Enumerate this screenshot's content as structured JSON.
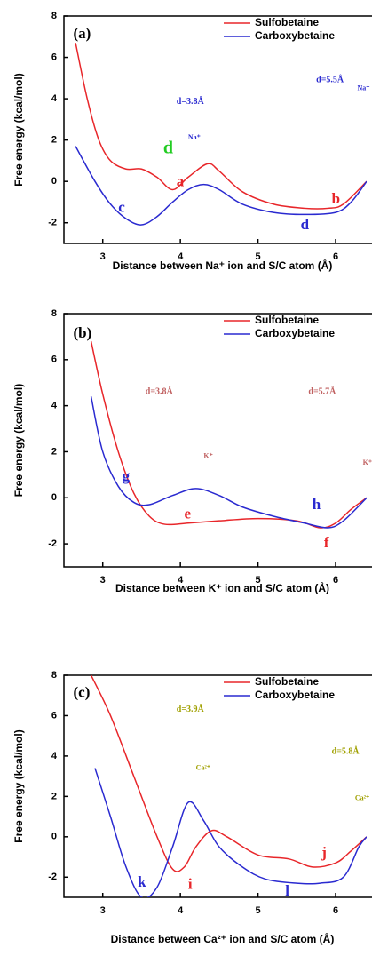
{
  "chart_data": [
    {
      "type": "line",
      "x_label": "Distance between Na⁺ ion and S/C atom (Å)",
      "y_label": "Free energy (kcal/mol)",
      "xlim": [
        2.5,
        6.4
      ],
      "ylim": [
        -3,
        8
      ],
      "xticks": [
        3,
        4,
        5,
        6
      ],
      "yticks": [
        -2,
        0,
        2,
        4,
        6,
        8
      ],
      "legend": "upper right",
      "series": [
        {
          "name": "Sulfobetaine",
          "color": "#e8262a",
          "x": [
            2.65,
            2.8,
            2.95,
            3.1,
            3.3,
            3.5,
            3.7,
            3.9,
            4.1,
            4.35,
            4.5,
            4.8,
            5.2,
            5.6,
            5.9,
            6.1,
            6.4
          ],
          "values": [
            6.7,
            4,
            2,
            1,
            0.6,
            0.6,
            0.2,
            -0.4,
            0.2,
            0.85,
            0.5,
            -0.5,
            -1.1,
            -1.3,
            -1.3,
            -1.1,
            0
          ]
        },
        {
          "name": "Carboxybetaine",
          "color": "#2a2ad0",
          "x": [
            2.65,
            2.9,
            3.1,
            3.3,
            3.5,
            3.7,
            3.9,
            4.1,
            4.3,
            4.5,
            4.8,
            5.2,
            5.6,
            6.0,
            6.2,
            6.4
          ],
          "values": [
            1.7,
            0,
            -1.1,
            -1.8,
            -2.1,
            -1.7,
            -1,
            -0.4,
            -0.15,
            -0.4,
            -1.1,
            -1.5,
            -1.6,
            -1.5,
            -1,
            0
          ]
        }
      ],
      "annotations": [
        {
          "text": "(a)",
          "color": "#000000"
        },
        {
          "text": "d=3.8Å",
          "color": "#2a2ad0"
        },
        {
          "text": "d=5.5Å",
          "color": "#2a2ad0"
        },
        {
          "text": "Na⁺",
          "color": "#2a2ad0"
        },
        {
          "text": "Na⁺",
          "color": "#2a2ad0"
        },
        {
          "text": "a",
          "color": "#e8262a"
        },
        {
          "text": "b",
          "color": "#e8262a"
        },
        {
          "text": "c",
          "color": "#2a2ad0"
        },
        {
          "text": "d",
          "color": "#2a2ad0"
        },
        {
          "text": "d",
          "color": "#22cc22"
        }
      ]
    },
    {
      "type": "line",
      "x_label": "Distance between K⁺ ion and S/C atom (Å)",
      "y_label": "Free energy (kcal/mol)",
      "xlim": [
        2.5,
        6.4
      ],
      "ylim": [
        -3,
        8
      ],
      "xticks": [
        3,
        4,
        5,
        6
      ],
      "yticks": [
        -2,
        0,
        2,
        4,
        6,
        8
      ],
      "legend": "upper right",
      "series": [
        {
          "name": "Sulfobetaine",
          "color": "#e8262a",
          "x": [
            2.85,
            3.0,
            3.2,
            3.4,
            3.6,
            3.8,
            4.1,
            4.5,
            5.0,
            5.5,
            5.8,
            6.0,
            6.2,
            6.4
          ],
          "values": [
            6.8,
            4.5,
            2,
            0.2,
            -0.8,
            -1.15,
            -1.1,
            -1.0,
            -0.9,
            -1.0,
            -1.3,
            -1.1,
            -0.5,
            0
          ]
        },
        {
          "name": "Carboxybetaine",
          "color": "#2a2ad0",
          "x": [
            2.85,
            3.0,
            3.2,
            3.4,
            3.6,
            3.9,
            4.2,
            4.5,
            4.8,
            5.2,
            5.6,
            5.9,
            6.1,
            6.4
          ],
          "values": [
            4.4,
            2,
            0.5,
            -0.2,
            -0.3,
            0.1,
            0.4,
            0.1,
            -0.4,
            -0.8,
            -1.1,
            -1.3,
            -1,
            0
          ]
        }
      ],
      "annotations": [
        {
          "text": "(b)",
          "color": "#000000"
        },
        {
          "text": "d=3.8Å",
          "color": "#c06060"
        },
        {
          "text": "d=5.7Å",
          "color": "#c06060"
        },
        {
          "text": "K⁺",
          "color": "#c06060"
        },
        {
          "text": "K⁺",
          "color": "#c06060"
        },
        {
          "text": "g",
          "color": "#2a2ad0"
        },
        {
          "text": "e",
          "color": "#e8262a"
        },
        {
          "text": "h",
          "color": "#2a2ad0"
        },
        {
          "text": "f",
          "color": "#e8262a"
        }
      ]
    },
    {
      "type": "line",
      "x_label": "Distance between Ca²⁺ ion and S/C atom (Å)",
      "y_label": "Free energy (kcal/mol)",
      "xlim": [
        2.5,
        6.4
      ],
      "ylim": [
        -3,
        8
      ],
      "xticks": [
        3,
        4,
        5,
        6
      ],
      "yticks": [
        -2,
        0,
        2,
        4,
        6,
        8
      ],
      "legend": "upper right",
      "series": [
        {
          "name": "Sulfobetaine",
          "color": "#e8262a",
          "x": [
            2.85,
            3.1,
            3.4,
            3.7,
            3.9,
            4.05,
            4.2,
            4.4,
            4.6,
            5.0,
            5.4,
            5.7,
            6.0,
            6.2,
            6.4
          ],
          "values": [
            8,
            6,
            3,
            0,
            -1.6,
            -1.5,
            -0.5,
            0.3,
            0,
            -0.9,
            -1.1,
            -1.5,
            -1.3,
            -0.7,
            0
          ]
        },
        {
          "name": "Carboxybetaine",
          "color": "#2a2ad0",
          "x": [
            2.9,
            3.1,
            3.3,
            3.5,
            3.7,
            3.9,
            4.1,
            4.3,
            4.5,
            4.8,
            5.1,
            5.5,
            5.8,
            6.1,
            6.3,
            6.4
          ],
          "values": [
            3.4,
            1,
            -1.5,
            -3,
            -2.5,
            -0.5,
            1.7,
            0.8,
            -0.5,
            -1.5,
            -2.1,
            -2.3,
            -2.3,
            -2.0,
            -0.5,
            0
          ]
        }
      ],
      "annotations": [
        {
          "text": "(c)",
          "color": "#000000"
        },
        {
          "text": "d=3.9Å",
          "color": "#a0a000"
        },
        {
          "text": "d=5.8Å",
          "color": "#a0a000"
        },
        {
          "text": "Ca²⁺",
          "color": "#a0a000"
        },
        {
          "text": "Ca²⁺",
          "color": "#a0a000"
        },
        {
          "text": "k",
          "color": "#2a2ad0"
        },
        {
          "text": "i",
          "color": "#e8262a"
        },
        {
          "text": "j",
          "color": "#e8262a"
        },
        {
          "text": "l",
          "color": "#2a2ad0"
        }
      ]
    }
  ]
}
